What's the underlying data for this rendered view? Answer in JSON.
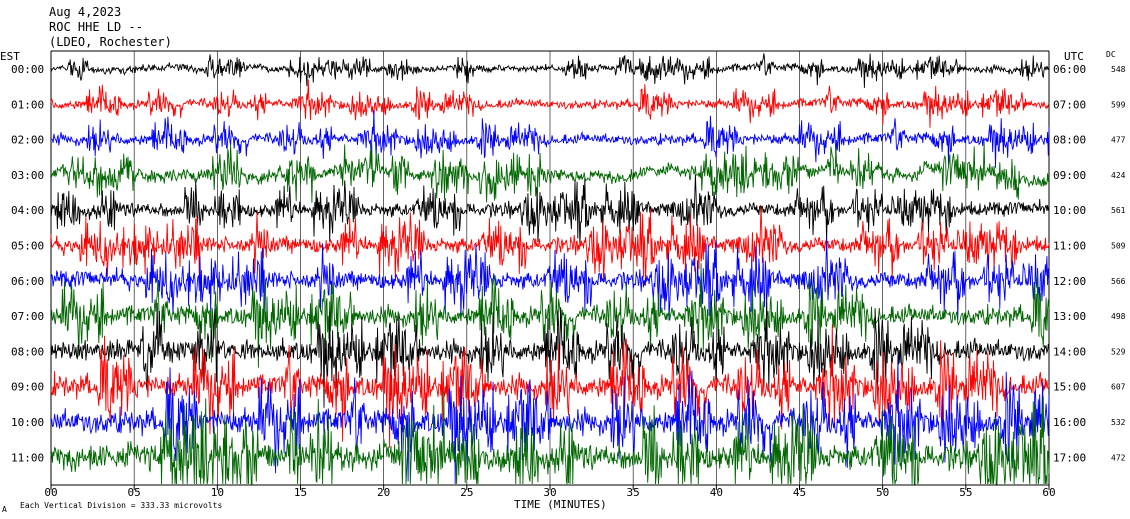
{
  "header": {
    "date": "Aug 4,2023",
    "station": "ROC HHE LD --",
    "network": "(LDEO, Rochester)"
  },
  "left_axis_label": "EST",
  "right_axis_label": "UTC",
  "dc_label": "DC",
  "footer_note": "Each Vertical Division =  333.33 microvolts",
  "footer_mark": "A",
  "colors": {
    "trace_cycle": [
      "#000000",
      "#ff0000",
      "#0000ff",
      "#006600"
    ]
  },
  "chart_data": {
    "type": "line",
    "title": "",
    "xlabel": "TIME (MINUTES)",
    "ylabel": "",
    "xlim": [
      0,
      60
    ],
    "x_ticks": [
      "00",
      "05",
      "10",
      "15",
      "20",
      "25",
      "30",
      "35",
      "40",
      "45",
      "50",
      "55",
      "60"
    ],
    "rows": [
      {
        "est": "00:00",
        "utc": "06:00",
        "dc": "548",
        "color": "#000000"
      },
      {
        "est": "01:00",
        "utc": "07:00",
        "dc": "599",
        "color": "#ff0000"
      },
      {
        "est": "02:00",
        "utc": "08:00",
        "dc": "477",
        "color": "#0000ff"
      },
      {
        "est": "03:00",
        "utc": "09:00",
        "dc": "424",
        "color": "#006600"
      },
      {
        "est": "04:00",
        "utc": "10:00",
        "dc": "561",
        "color": "#000000"
      },
      {
        "est": "05:00",
        "utc": "11:00",
        "dc": "509",
        "color": "#ff0000"
      },
      {
        "est": "06:00",
        "utc": "12:00",
        "dc": "566",
        "color": "#0000ff"
      },
      {
        "est": "07:00",
        "utc": "13:00",
        "dc": "498",
        "color": "#006600"
      },
      {
        "est": "08:00",
        "utc": "14:00",
        "dc": "529",
        "color": "#000000"
      },
      {
        "est": "09:00",
        "utc": "15:00",
        "dc": "607",
        "color": "#ff0000"
      },
      {
        "est": "10:00",
        "utc": "16:00",
        "dc": "532",
        "color": "#0000ff"
      },
      {
        "est": "11:00",
        "utc": "17:00",
        "dc": "472",
        "color": "#006600"
      }
    ]
  }
}
